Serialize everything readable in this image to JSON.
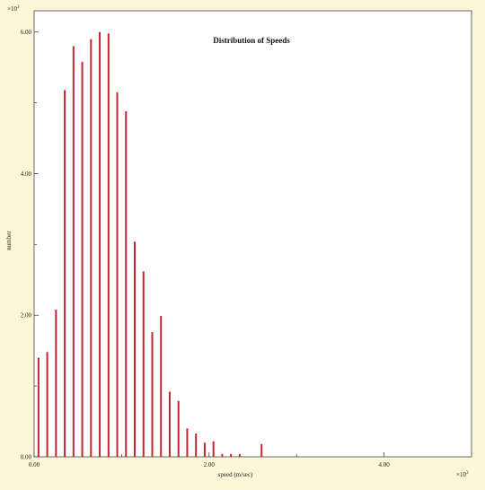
{
  "chart_data": {
    "type": "bar",
    "title": "Distribution of Speeds",
    "xlabel": "speed (m/sec)",
    "ylabel": "number",
    "x_multiplier_label": "×10",
    "x_multiplier_exp": "3",
    "y_multiplier_label": "×10",
    "y_multiplier_exp": "3",
    "xlim": [
      0,
      5.0
    ],
    "ylim": [
      0,
      6.3
    ],
    "x_ticks": [
      0.0,
      2.0,
      4.0
    ],
    "x_tick_labels": [
      "0.00",
      "2.00",
      "4.00"
    ],
    "y_ticks": [
      0.0,
      2.0,
      4.0,
      6.0
    ],
    "y_tick_labels": [
      "0.00",
      "2.00",
      "4.00",
      "6.00"
    ],
    "grid": false,
    "bar_color": "#c0282d",
    "background_color": "#fdf6d8",
    "plot_background": "#ffffff",
    "x": [
      0.05,
      0.15,
      0.25,
      0.35,
      0.45,
      0.55,
      0.65,
      0.75,
      0.85,
      0.95,
      1.05,
      1.15,
      1.25,
      1.35,
      1.45,
      1.55,
      1.65,
      1.75,
      1.85,
      1.95,
      2.05,
      2.15,
      2.25,
      2.35,
      2.6
    ],
    "values": [
      1.4,
      1.48,
      2.08,
      5.18,
      5.8,
      5.58,
      5.9,
      6.0,
      5.98,
      5.15,
      4.88,
      3.04,
      2.62,
      1.76,
      1.99,
      0.92,
      0.79,
      0.4,
      0.33,
      0.2,
      0.22,
      0.04,
      0.04,
      0.04,
      0.18
    ]
  }
}
